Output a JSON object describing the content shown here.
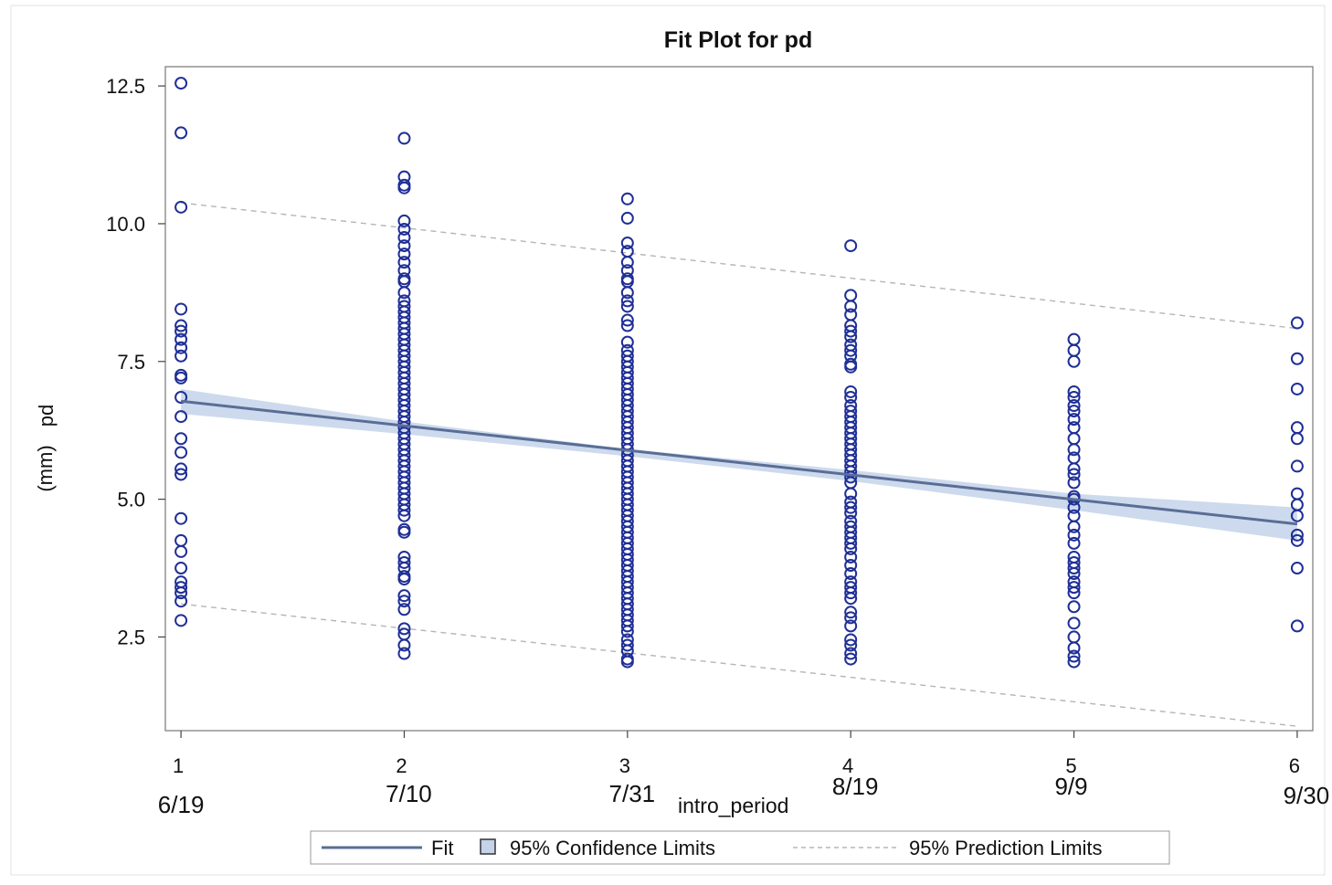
{
  "chart_data": {
    "type": "scatter",
    "title": "Fit Plot for pd",
    "xlabel": "intro_period",
    "ylabel": "pd",
    "ylabel_unit": "(mm)",
    "xlim": [
      0.93,
      6.07
    ],
    "ylim": [
      0.8,
      12.85
    ],
    "x_ticks": [
      "1",
      "2",
      "3",
      "4",
      "5",
      "6"
    ],
    "x_tick_values": [
      1,
      2,
      3,
      4,
      5,
      6
    ],
    "date_labels": [
      "6/19",
      "7/10",
      "7/31",
      "8/19",
      "9/9",
      "9/30"
    ],
    "y_ticks": [
      "2.5",
      "5.0",
      "7.5",
      "10.0",
      "12.5"
    ],
    "y_tick_values": [
      2.5,
      5.0,
      7.5,
      10.0,
      12.5
    ],
    "grid": false,
    "legend_position": "bottom",
    "legend": {
      "fit": "Fit",
      "confidence": "95% Confidence Limits",
      "prediction": "95% Prediction Limits"
    },
    "colors": {
      "points": "#1f2f96",
      "fit_line": "#5a6d96",
      "confidence_band": "#c4d3ea",
      "prediction_line": "#b5b5b5"
    },
    "fit": {
      "x": [
        1,
        6
      ],
      "y": [
        6.78,
        4.55
      ]
    },
    "confidence_band": {
      "x": [
        1,
        2,
        3,
        4,
        5,
        6
      ],
      "lower": [
        6.55,
        6.18,
        5.78,
        5.33,
        4.8,
        4.25
      ],
      "upper": [
        7.0,
        6.41,
        5.91,
        5.53,
        5.1,
        4.85
      ]
    },
    "prediction_limits": {
      "x": [
        1,
        6
      ],
      "upper": [
        10.38,
        8.1
      ],
      "lower": [
        3.1,
        0.88
      ]
    },
    "series": [
      {
        "x": 1,
        "values": [
          12.55,
          11.65,
          10.3,
          8.45,
          8.15,
          8.05,
          7.9,
          7.75,
          7.6,
          7.25,
          7.2,
          6.85,
          6.5,
          6.1,
          5.85,
          5.55,
          5.45,
          4.65,
          4.25,
          4.05,
          3.75,
          3.5,
          3.4,
          3.3,
          3.15,
          2.8
        ]
      },
      {
        "x": 2,
        "values": [
          11.55,
          10.85,
          10.7,
          10.65,
          10.05,
          9.9,
          9.75,
          9.6,
          9.45,
          9.3,
          9.15,
          9.0,
          8.95,
          8.75,
          8.6,
          8.5,
          8.4,
          8.3,
          8.2,
          8.1,
          8.0,
          7.9,
          7.8,
          7.7,
          7.6,
          7.5,
          7.4,
          7.3,
          7.2,
          7.1,
          7.0,
          6.9,
          6.8,
          6.7,
          6.6,
          6.5,
          6.4,
          6.3,
          6.2,
          6.1,
          6.0,
          5.9,
          5.8,
          5.7,
          5.6,
          5.5,
          5.4,
          5.3,
          5.2,
          5.1,
          5.0,
          4.9,
          4.8,
          4.7,
          4.45,
          4.4,
          3.95,
          3.85,
          3.75,
          3.6,
          3.55,
          3.25,
          3.15,
          3.0,
          2.65,
          2.55,
          2.35,
          2.2
        ]
      },
      {
        "x": 3,
        "values": [
          10.45,
          10.1,
          9.65,
          9.5,
          9.3,
          9.15,
          9.0,
          8.95,
          8.75,
          8.6,
          8.5,
          8.25,
          8.15,
          7.85,
          7.7,
          7.6,
          7.5,
          7.4,
          7.3,
          7.2,
          7.1,
          7.0,
          6.9,
          6.8,
          6.7,
          6.6,
          6.5,
          6.4,
          6.3,
          6.2,
          6.1,
          6.0,
          5.9,
          5.8,
          5.7,
          5.6,
          5.5,
          5.4,
          5.3,
          5.2,
          5.1,
          5.0,
          4.9,
          4.8,
          4.7,
          4.6,
          4.5,
          4.4,
          4.3,
          4.2,
          4.1,
          4.0,
          3.9,
          3.8,
          3.7,
          3.6,
          3.5,
          3.4,
          3.3,
          3.2,
          3.1,
          3.0,
          2.9,
          2.8,
          2.7,
          2.6,
          2.45,
          2.35,
          2.25,
          2.1,
          2.05
        ]
      },
      {
        "x": 4,
        "values": [
          9.6,
          8.7,
          8.5,
          8.35,
          8.15,
          8.05,
          7.95,
          7.8,
          7.7,
          7.6,
          7.45,
          7.4,
          6.95,
          6.85,
          6.7,
          6.6,
          6.5,
          6.4,
          6.3,
          6.2,
          6.1,
          6.0,
          5.9,
          5.8,
          5.7,
          5.6,
          5.5,
          5.4,
          5.3,
          5.1,
          4.95,
          4.85,
          4.75,
          4.6,
          4.5,
          4.4,
          4.3,
          4.2,
          4.1,
          3.95,
          3.8,
          3.65,
          3.5,
          3.4,
          3.3,
          3.2,
          2.95,
          2.85,
          2.7,
          2.45,
          2.35,
          2.2,
          2.1
        ]
      },
      {
        "x": 5,
        "values": [
          7.9,
          7.7,
          7.5,
          6.95,
          6.85,
          6.7,
          6.6,
          6.45,
          6.3,
          6.1,
          5.9,
          5.75,
          5.55,
          5.45,
          5.3,
          5.05,
          5.0,
          4.85,
          4.7,
          4.5,
          4.35,
          4.2,
          3.95,
          3.85,
          3.75,
          3.65,
          3.5,
          3.4,
          3.3,
          3.05,
          2.75,
          2.5,
          2.3,
          2.15,
          2.05
        ]
      },
      {
        "x": 6,
        "values": [
          8.2,
          7.55,
          7.0,
          6.3,
          6.1,
          5.6,
          5.1,
          4.9,
          4.7,
          4.35,
          4.25,
          3.75,
          2.7
        ]
      }
    ]
  }
}
